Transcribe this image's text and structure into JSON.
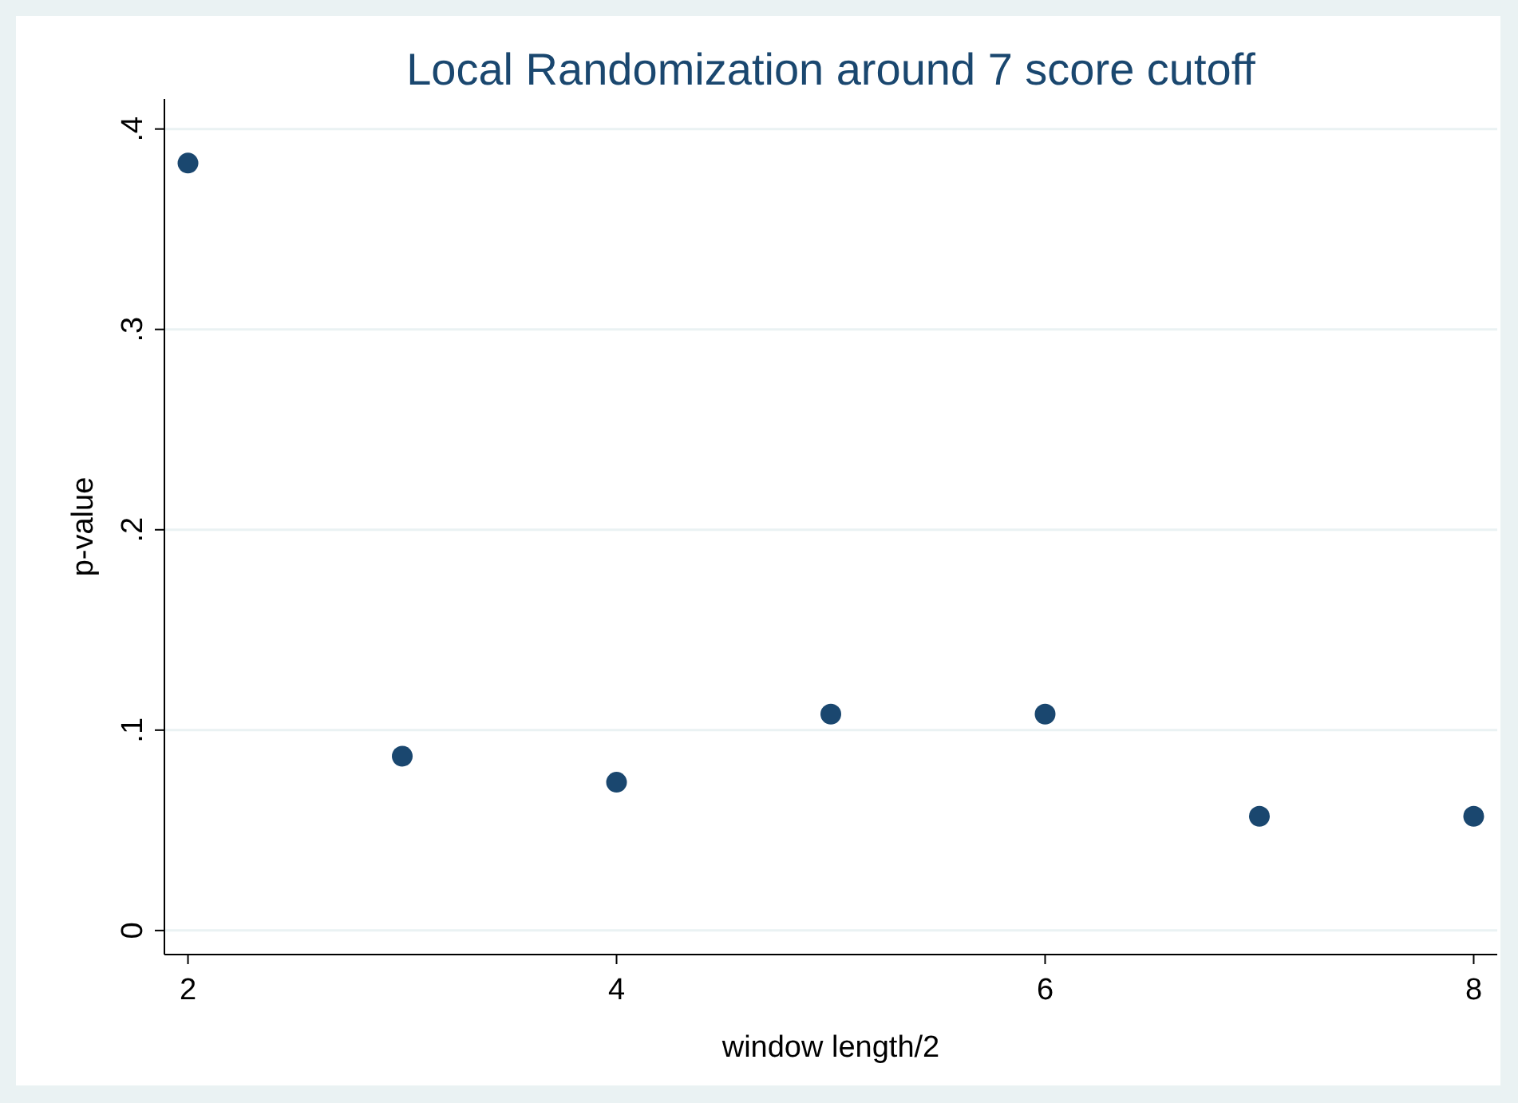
{
  "chart_data": {
    "type": "scatter",
    "title": "Local Randomization around 7 score cutoff",
    "xlabel": "window length/2",
    "ylabel": "p-value",
    "x": [
      2,
      3,
      4,
      5,
      6,
      7,
      8
    ],
    "series": [
      {
        "color": "#1a476f",
        "values": [
          0.383,
          0.087,
          0.074,
          0.108,
          0.108,
          0.057,
          0.057
        ]
      }
    ],
    "xlim": [
      1.89,
      8.11
    ],
    "ylim": [
      -0.012,
      0.415
    ],
    "xticks": [
      2,
      4,
      6,
      8
    ],
    "yticks": [
      0,
      {
        "value": 0.1,
        "label": ".1"
      },
      {
        "value": 0.2,
        "label": ".2"
      },
      {
        "value": 0.3,
        "label": ".3"
      },
      {
        "value": 0.4,
        "label": ".4"
      }
    ],
    "grid": "y",
    "marker": "circle"
  }
}
